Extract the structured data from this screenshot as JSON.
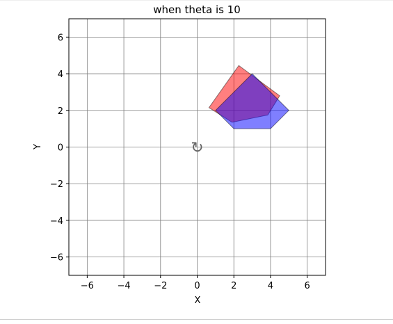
{
  "chart_data": {
    "type": "area",
    "title": "when theta is 10",
    "xlabel": "X",
    "ylabel": "Y",
    "xlim": [
      -7,
      7
    ],
    "ylim": [
      -7,
      7
    ],
    "xticks": [
      -6,
      -4,
      -2,
      0,
      2,
      4,
      6
    ],
    "yticks": [
      -6,
      -4,
      -2,
      0,
      2,
      4,
      6
    ],
    "xtick_labels": [
      "−6",
      "−4",
      "−2",
      "0",
      "2",
      "4",
      "6"
    ],
    "ytick_labels": [
      "−6",
      "−4",
      "−2",
      "0",
      "2",
      "4",
      "6"
    ],
    "grid": true,
    "rotation_glyph": "↻",
    "rotation_center": [
      0,
      0
    ],
    "series": [
      {
        "color": "#ff0000",
        "alpha": 0.5,
        "points": [
          [
            0.64,
            2.15
          ],
          [
            2.27,
            4.45
          ],
          [
            4.5,
            2.8
          ],
          [
            3.85,
            1.75
          ],
          [
            1.9,
            1.35
          ]
        ]
      },
      {
        "color": "#0000ff",
        "alpha": 0.5,
        "points": [
          [
            1.0,
            2.0
          ],
          [
            3.0,
            4.0
          ],
          [
            5.0,
            2.0
          ],
          [
            4.0,
            1.0
          ],
          [
            2.0,
            1.0
          ]
        ]
      }
    ]
  }
}
